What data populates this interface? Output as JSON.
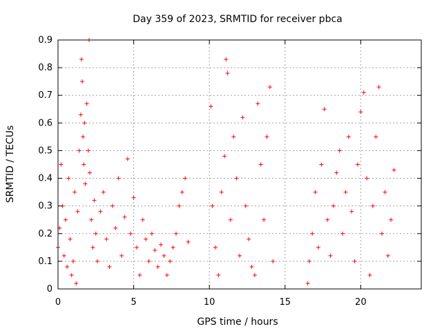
{
  "chart_data": {
    "type": "scatter",
    "title": "Day 359 of 2023, SRMTID for receiver pbca",
    "xlabel": "GPS time / hours",
    "ylabel": "SRMTID / TECUs",
    "xlim": [
      0,
      24
    ],
    "ylim": [
      0,
      0.9
    ],
    "xticks": [
      0,
      5,
      10,
      15,
      20
    ],
    "yticks": [
      0,
      0.1,
      0.2,
      0.3,
      0.4,
      0.5,
      0.6,
      0.7,
      0.8,
      0.9
    ],
    "grid": true,
    "marker": "plus",
    "color": "#ff0000",
    "series": [
      {
        "name": "SRMTID",
        "x": [
          0.0,
          0.1,
          0.2,
          0.3,
          0.4,
          0.5,
          0.6,
          0.7,
          0.8,
          0.9,
          1.0,
          1.1,
          1.2,
          1.3,
          1.4,
          1.5,
          1.55,
          1.6,
          1.65,
          1.7,
          1.75,
          1.8,
          1.9,
          2.0,
          2.05,
          2.1,
          2.2,
          2.3,
          2.4,
          2.5,
          2.6,
          2.8,
          3.0,
          3.2,
          3.4,
          3.6,
          3.8,
          4.0,
          4.2,
          4.4,
          4.6,
          4.8,
          5.0,
          5.2,
          5.4,
          5.6,
          5.8,
          6.0,
          6.2,
          6.4,
          6.6,
          6.8,
          7.0,
          7.2,
          7.4,
          7.6,
          7.8,
          8.0,
          8.2,
          8.4,
          8.6,
          10.1,
          10.2,
          10.4,
          10.6,
          10.8,
          11.0,
          11.1,
          11.2,
          11.4,
          11.6,
          11.8,
          12.0,
          12.2,
          12.4,
          12.6,
          12.8,
          13.0,
          13.2,
          13.4,
          13.6,
          13.8,
          14.0,
          14.2,
          16.5,
          16.6,
          16.8,
          17.0,
          17.2,
          17.4,
          17.6,
          17.8,
          18.0,
          18.2,
          18.4,
          18.6,
          18.8,
          19.0,
          19.2,
          19.4,
          19.6,
          19.8,
          20.0,
          20.2,
          20.4,
          20.6,
          20.8,
          21.0,
          21.2,
          21.4,
          21.6,
          21.8,
          22.0,
          22.2
        ],
        "y": [
          0.15,
          0.22,
          0.45,
          0.3,
          0.12,
          0.25,
          0.08,
          0.4,
          0.18,
          0.05,
          0.1,
          0.35,
          0.02,
          0.28,
          0.5,
          0.63,
          0.83,
          0.75,
          0.55,
          0.45,
          0.6,
          0.38,
          0.67,
          0.5,
          0.9,
          0.42,
          0.25,
          0.15,
          0.32,
          0.2,
          0.1,
          0.28,
          0.35,
          0.18,
          0.08,
          0.3,
          0.22,
          0.4,
          0.12,
          0.26,
          0.47,
          0.2,
          0.33,
          0.15,
          0.05,
          0.25,
          0.18,
          0.1,
          0.2,
          0.14,
          0.08,
          0.16,
          0.12,
          0.05,
          0.1,
          0.15,
          0.2,
          0.3,
          0.35,
          0.4,
          0.17,
          0.66,
          0.3,
          0.15,
          0.05,
          0.35,
          0.48,
          0.83,
          0.78,
          0.25,
          0.55,
          0.4,
          0.12,
          0.62,
          0.3,
          0.18,
          0.08,
          0.05,
          0.67,
          0.45,
          0.25,
          0.55,
          0.73,
          0.1,
          0.02,
          0.1,
          0.2,
          0.35,
          0.15,
          0.45,
          0.65,
          0.25,
          0.12,
          0.3,
          0.42,
          0.5,
          0.2,
          0.35,
          0.55,
          0.28,
          0.1,
          0.45,
          0.64,
          0.71,
          0.4,
          0.05,
          0.3,
          0.55,
          0.73,
          0.2,
          0.35,
          0.12,
          0.25,
          0.43
        ]
      }
    ]
  }
}
